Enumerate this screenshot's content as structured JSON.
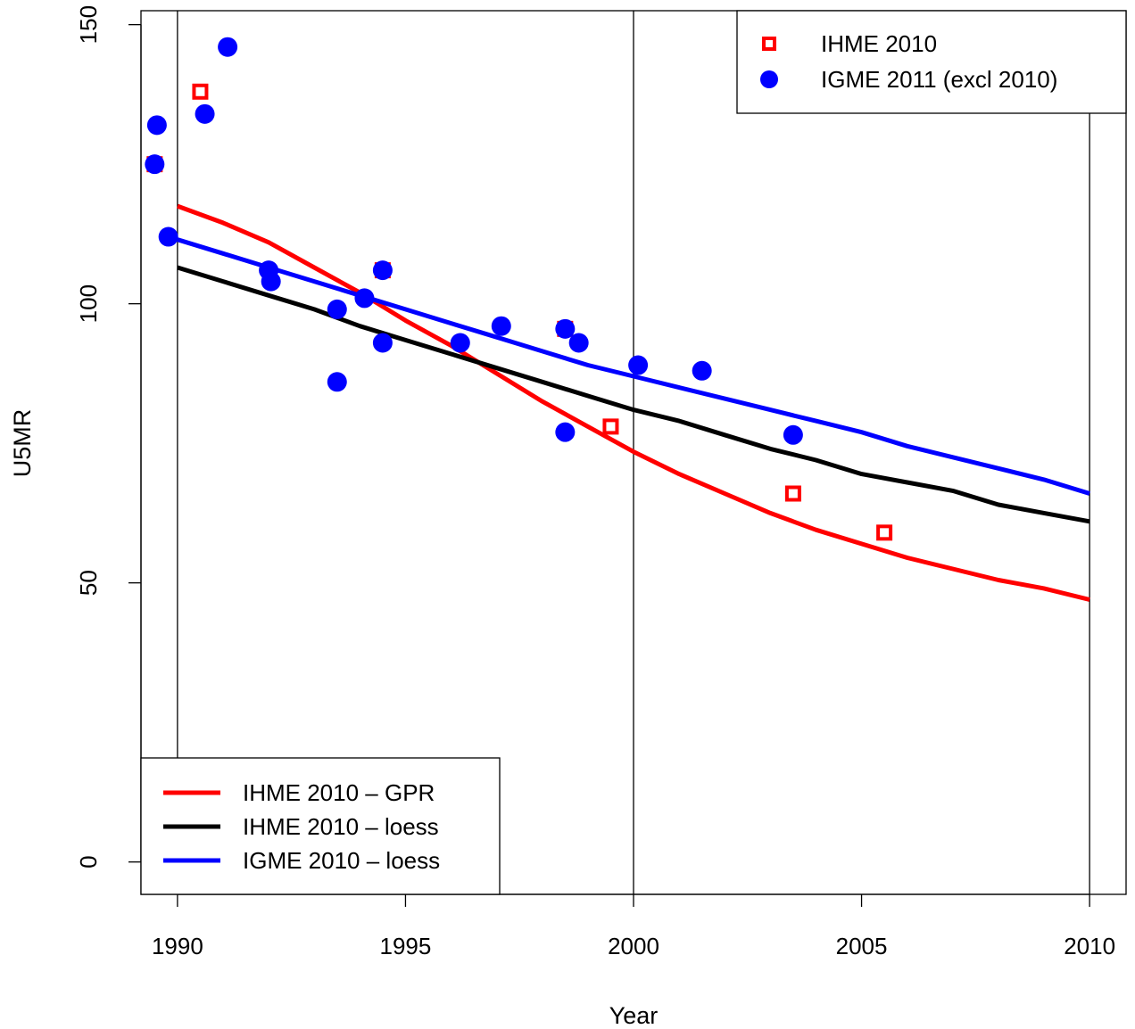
{
  "chart_data": {
    "type": "scatter",
    "xlabel": "Year",
    "ylabel": "U5MR",
    "xlim": [
      1989.2,
      2010.8
    ],
    "ylim": [
      -5.8,
      152.5
    ],
    "xticks": [
      1990,
      1995,
      2000,
      2005,
      2010
    ],
    "yticks": [
      0,
      50,
      100,
      150
    ],
    "vertical_reference_lines": [
      1990,
      2000,
      2010
    ],
    "grid": false,
    "point_legend": {
      "placement": "top-right",
      "entries": [
        {
          "label": "IHME 2010",
          "marker": "square",
          "color": "#FF0000"
        },
        {
          "label": "IGME 2011 (excl 2010)",
          "marker": "circle",
          "color": "#0000FF"
        }
      ]
    },
    "line_legend": {
      "placement": "bottom-left",
      "entries": [
        {
          "label": "IHME 2010 – GPR",
          "color": "#FF0000"
        },
        {
          "label": "IHME 2010 – loess",
          "color": "#000000"
        },
        {
          "label": "IGME 2010 – loess",
          "color": "#0000FF"
        }
      ]
    },
    "points": [
      {
        "name": "IHME 2010",
        "marker": "square",
        "color": "#FF0000",
        "data": [
          [
            1989.5,
            125
          ],
          [
            1990.5,
            138
          ],
          [
            1994.5,
            106
          ],
          [
            1998.5,
            95.5
          ],
          [
            1999.5,
            78
          ],
          [
            2003.5,
            66
          ],
          [
            2005.5,
            59
          ]
        ]
      },
      {
        "name": "IGME 2011 (excl 2010)",
        "marker": "circle",
        "color": "#0000FF",
        "data": [
          [
            1989.5,
            125
          ],
          [
            1989.55,
            132
          ],
          [
            1989.8,
            112
          ],
          [
            1990.6,
            134
          ],
          [
            1991.1,
            146
          ],
          [
            1992,
            106
          ],
          [
            1992.05,
            104
          ],
          [
            1993.5,
            99
          ],
          [
            1993.5,
            86
          ],
          [
            1994.1,
            101
          ],
          [
            1994.5,
            106
          ],
          [
            1994.5,
            93
          ],
          [
            1996.2,
            93
          ],
          [
            1997.1,
            96
          ],
          [
            1998.5,
            95.5
          ],
          [
            1998.5,
            77
          ],
          [
            1998.8,
            93
          ],
          [
            2000.1,
            89
          ],
          [
            2001.5,
            88
          ],
          [
            2003.5,
            76.5
          ]
        ]
      }
    ],
    "series": [
      {
        "name": "IHME 2010 – GPR",
        "color": "#FF0000",
        "x": [
          1990,
          1991,
          1992,
          1993,
          1994,
          1995,
          1996,
          1997,
          1998,
          1999,
          2000,
          2001,
          2002,
          2003,
          2004,
          2005,
          2006,
          2007,
          2008,
          2009,
          2010
        ],
        "y": [
          117.5,
          114.5,
          111,
          106.5,
          102,
          97,
          92.5,
          87.5,
          82.5,
          78,
          73.5,
          69.5,
          66,
          62.5,
          59.5,
          57,
          54.5,
          52.5,
          50.5,
          49,
          47
        ]
      },
      {
        "name": "IHME 2010 – loess",
        "color": "#000000",
        "x": [
          1990,
          1991,
          1992,
          1993,
          1994,
          1995,
          1996,
          1997,
          1998,
          1999,
          2000,
          2001,
          2002,
          2003,
          2004,
          2005,
          2006,
          2007,
          2008,
          2009,
          2010
        ],
        "y": [
          106.5,
          104,
          101.5,
          99,
          96,
          93.5,
          91,
          88.5,
          86,
          83.5,
          81,
          79,
          76.5,
          74,
          72,
          69.5,
          68,
          66.5,
          64,
          62.5,
          61
        ]
      },
      {
        "name": "IGME 2010 – loess",
        "color": "#0000FF",
        "x": [
          1990,
          1991,
          1992,
          1993,
          1994,
          1995,
          1996,
          1997,
          1998,
          1999,
          2000,
          2001,
          2002,
          2003,
          2004,
          2005,
          2006,
          2007,
          2008,
          2009,
          2010
        ],
        "y": [
          111.5,
          109,
          106.5,
          104,
          101.5,
          99,
          96.5,
          94,
          91.5,
          89,
          87,
          85,
          83,
          81,
          79,
          77,
          74.5,
          72.5,
          70.5,
          68.5,
          66
        ]
      }
    ]
  }
}
